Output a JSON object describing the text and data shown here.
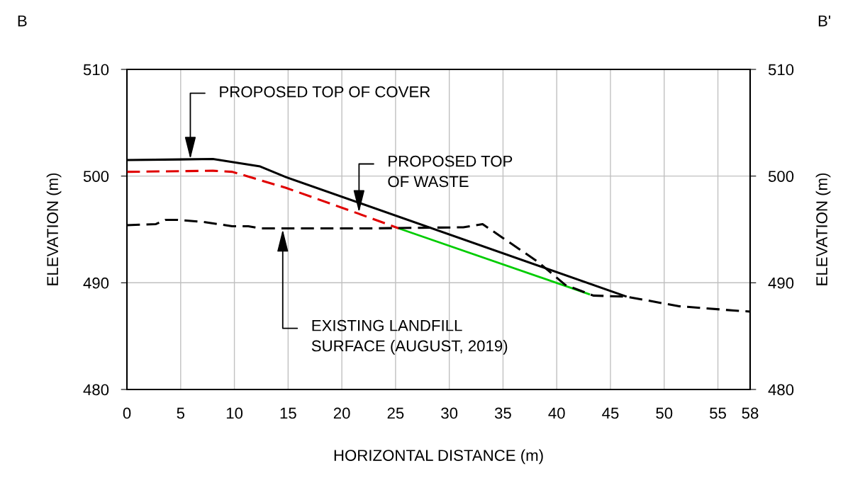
{
  "chart_data": {
    "type": "line",
    "xlabel": "HORIZONTAL DISTANCE (m)",
    "ylabel": "ELEVATION (m)",
    "y2label": "ELEVATION (m)",
    "xlim": [
      0,
      58
    ],
    "xticks": [
      0,
      5,
      10,
      15,
      20,
      25,
      30,
      35,
      40,
      45,
      50,
      55,
      58
    ],
    "ylim": [
      480,
      510
    ],
    "yticks": [
      480,
      490,
      500,
      510
    ],
    "y2lim": [
      480,
      510
    ],
    "y2ticks": [
      480,
      490,
      500,
      510
    ],
    "grid": true,
    "legend": false,
    "marker": "none",
    "series": [
      {
        "color": "#000000",
        "line_style": "solid",
        "x": [
          0,
          8,
          12.4,
          14.8,
          46.5
        ],
        "values": [
          501.5,
          501.6,
          500.9,
          499.9,
          488.7
        ]
      },
      {
        "color": "#e00000",
        "line_style": "dashed",
        "x": [
          0,
          8,
          9.8,
          14.8,
          21.5,
          25.3
        ],
        "values": [
          500.4,
          500.5,
          500.4,
          498.9,
          496.5,
          495.1
        ]
      },
      {
        "color": "#00cc00",
        "line_style": "solid",
        "x": [
          25.3,
          43.1
        ],
        "values": [
          495.1,
          488.9
        ]
      },
      {
        "color": "#000000",
        "line_style": "dashed",
        "x": [
          0,
          2.7,
          3.6,
          4.7,
          7.1,
          9.8,
          11.3,
          12.4,
          22.7,
          31.3,
          33.1,
          38.2,
          40.8,
          43.4,
          46.5,
          51.4,
          56.5,
          58
        ],
        "values": [
          495.4,
          495.5,
          495.9,
          495.9,
          495.7,
          495.3,
          495.3,
          495.1,
          495.1,
          495.2,
          495.5,
          492.0,
          489.8,
          488.8,
          488.7,
          487.8,
          487.4,
          487.3
        ]
      }
    ],
    "annotations": [
      "B",
      "B'",
      {
        "text": "PROPOSED TOP OF COVER",
        "x": 5.9,
        "y": 501.6
      },
      {
        "text": "PROPOSED TOP\nOF WASTE",
        "x": 21.6,
        "y": 496.6
      },
      {
        "text": "EXISTING LANDFILL\nSURFACE (AUGUST, 2019)",
        "x": 14.5,
        "y": 495.0
      }
    ]
  }
}
